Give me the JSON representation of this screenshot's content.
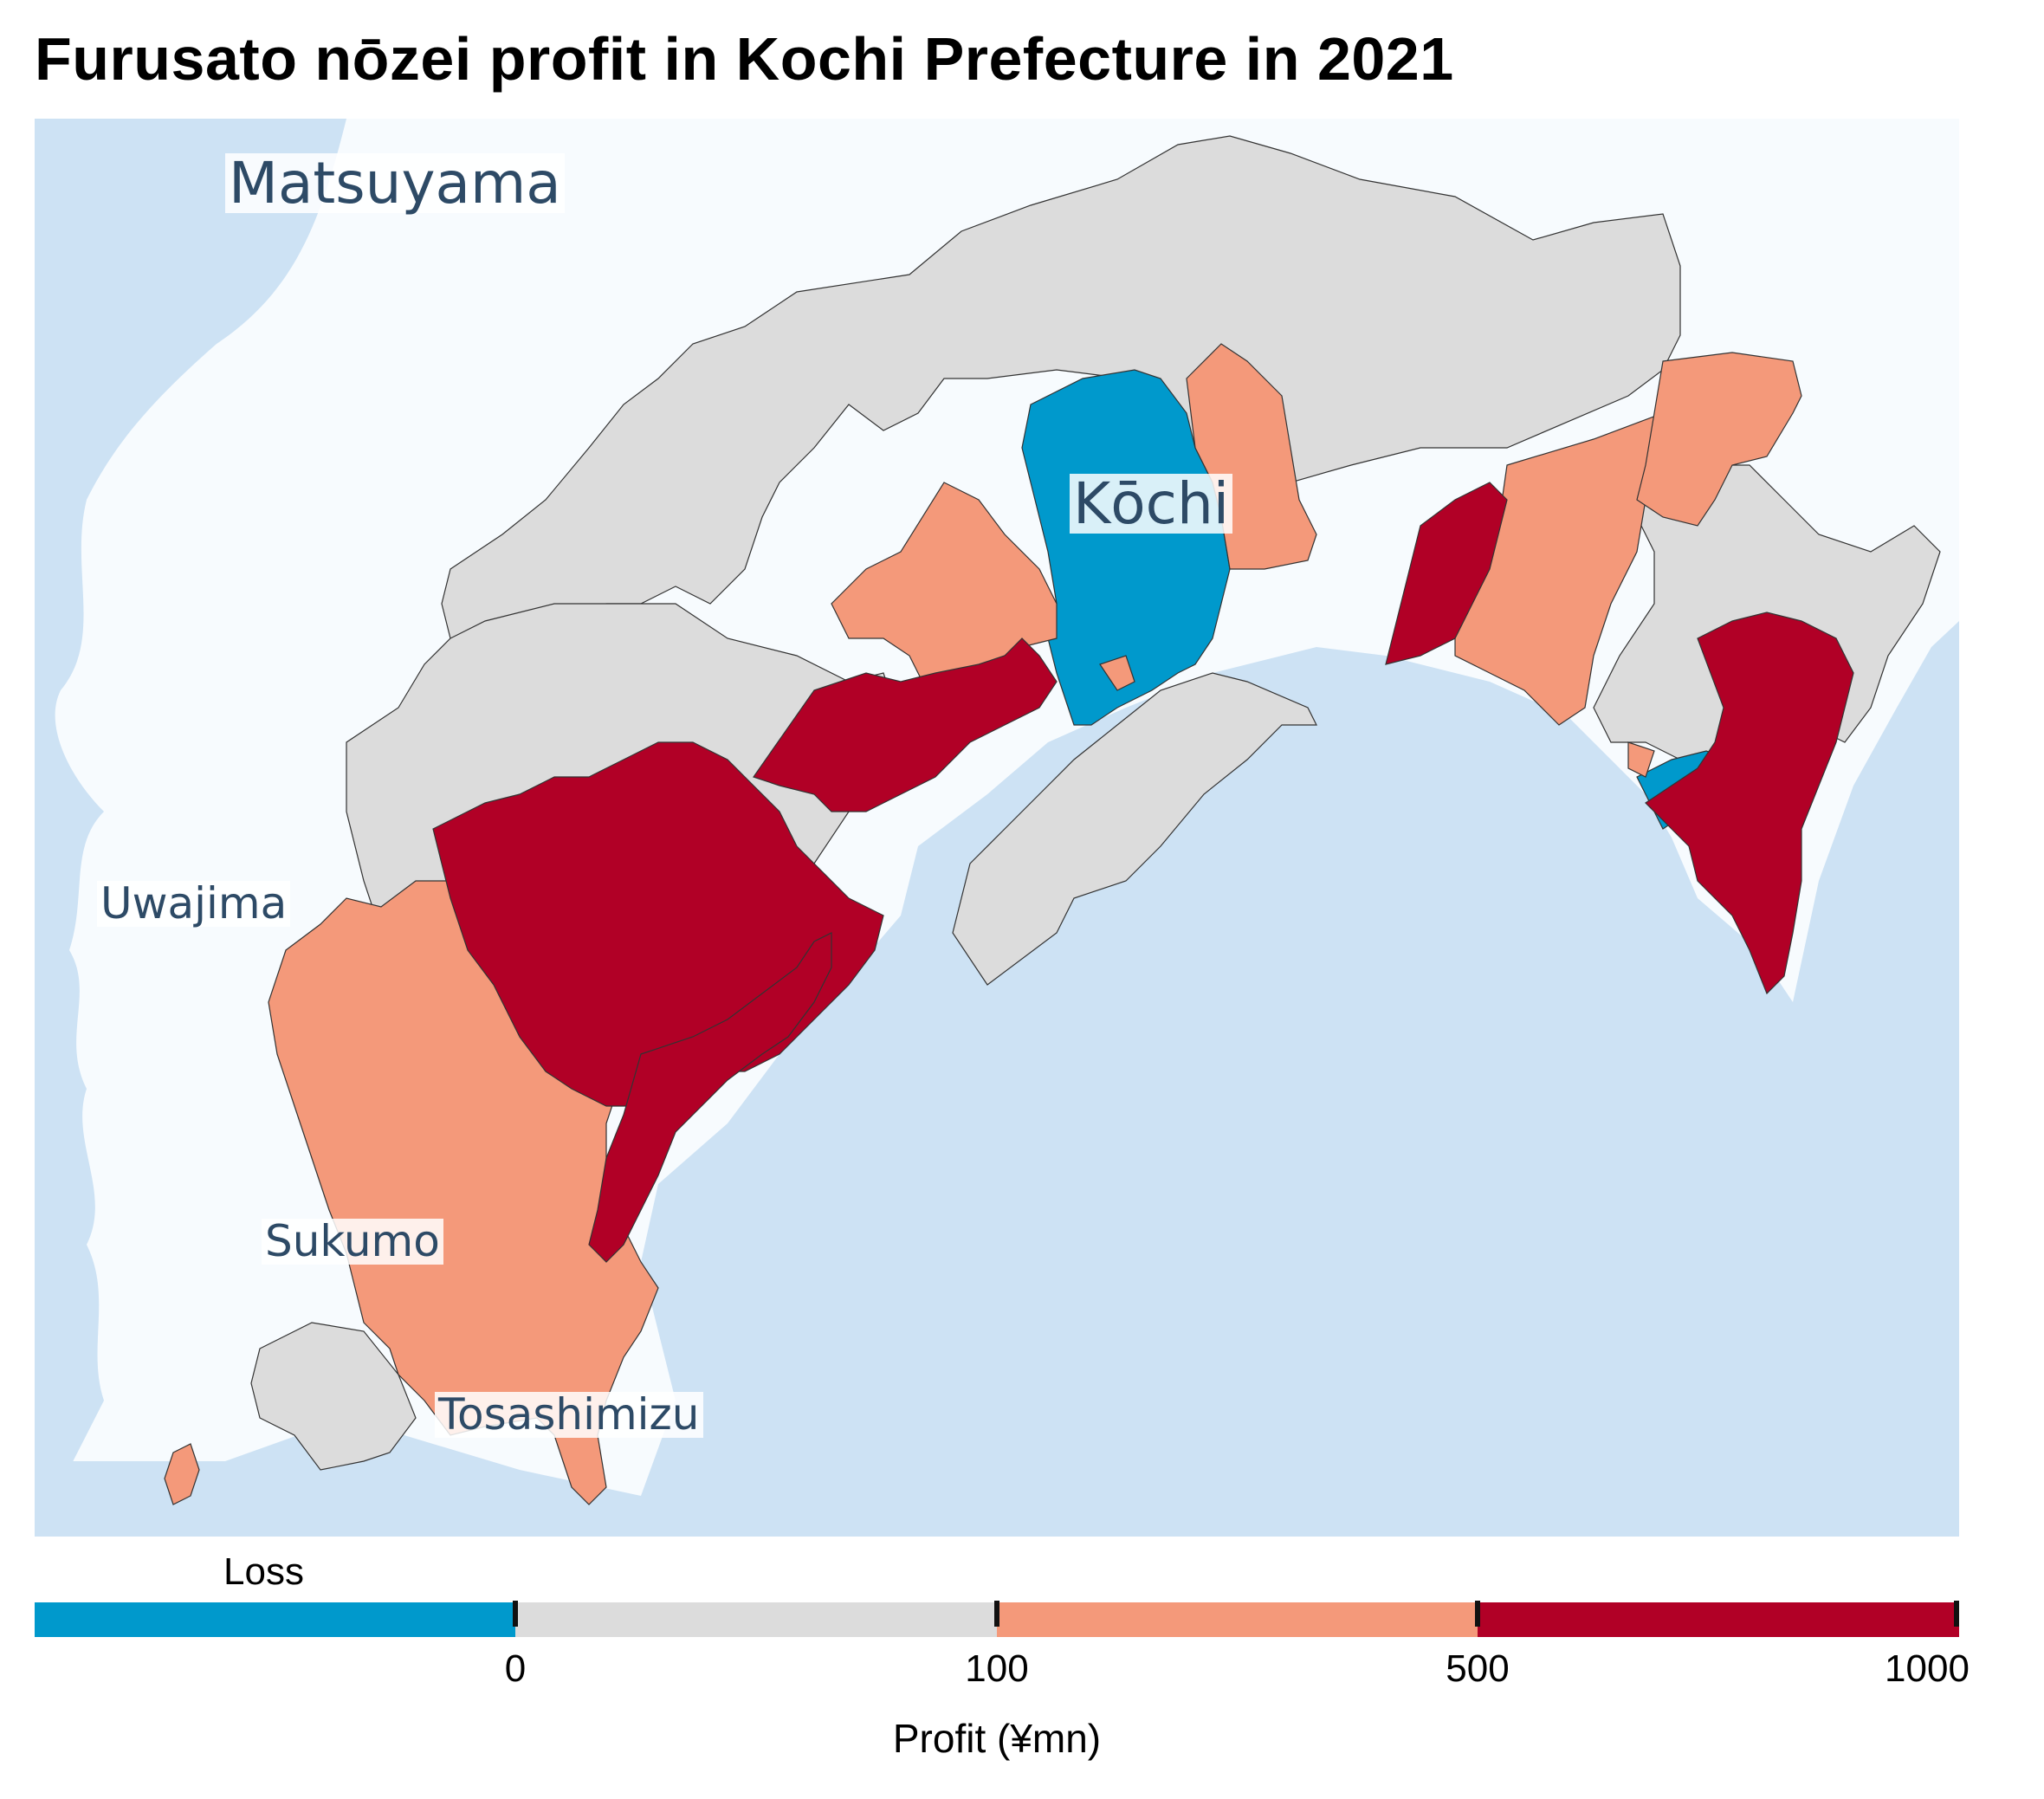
{
  "title": "Furusato nōzei profit in Kochi Prefecture in 2021",
  "colors": {
    "sea": "#cde2f4",
    "land_outside": "#f7fbfe",
    "no_data_grey": "#dcdcdc",
    "loss": "#0099cc",
    "profit_100_500": "#f4997a",
    "profit_500_1000": "#b10026",
    "label_text": "#2d4a66"
  },
  "map": {
    "type": "choropleth",
    "region": "Kochi Prefecture",
    "cities": [
      {
        "name": "Matsuyama",
        "size": "large"
      },
      {
        "name": "Kōchi",
        "size": "large"
      },
      {
        "name": "Uwajima",
        "size": "medium"
      },
      {
        "name": "Sukumo",
        "size": "medium"
      },
      {
        "name": "Tosashimizu",
        "size": "medium"
      }
    ]
  },
  "legend": {
    "loss_label": "Loss",
    "title": "Profit (¥mn)",
    "ticks": [
      "0",
      "100",
      "500",
      "1000"
    ],
    "classes": [
      {
        "label": "Loss",
        "color": "#0099cc"
      },
      {
        "label": "0–100",
        "color": "#dcdcdc"
      },
      {
        "label": "100–500",
        "color": "#f4997a"
      },
      {
        "label": "500–1000",
        "color": "#b10026"
      }
    ]
  }
}
